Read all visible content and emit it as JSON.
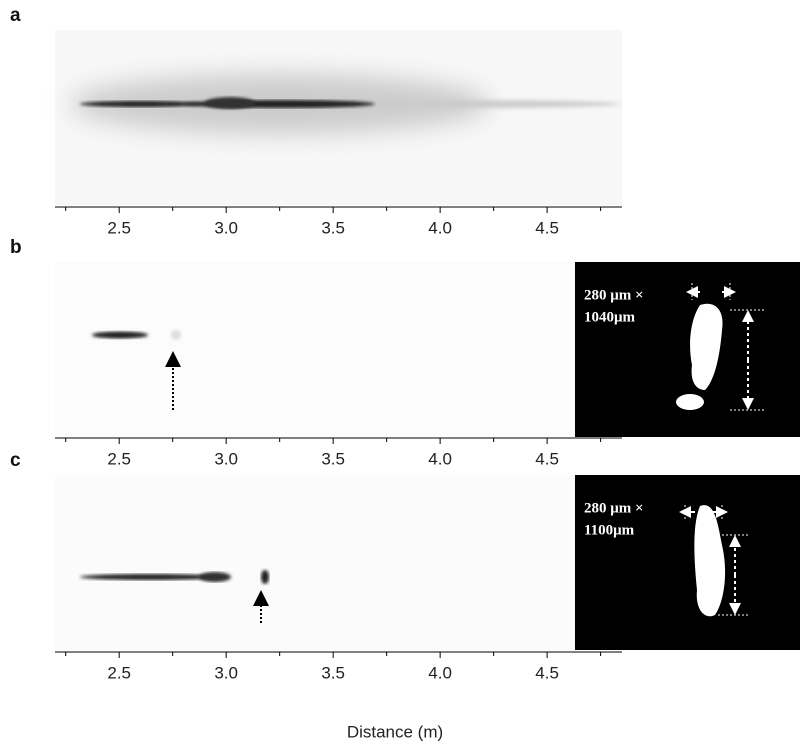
{
  "panels": [
    {
      "label": "a"
    },
    {
      "label": "b",
      "inset_lines": [
        "280 μm ×",
        "1040μm"
      ]
    },
    {
      "label": "c",
      "inset_lines": [
        "280 μm ×",
        "1100μm"
      ]
    }
  ],
  "x_axis": {
    "label": "Distance (m)",
    "xlim": [
      2.2,
      4.85
    ],
    "xticks": [
      2.5,
      {
        "value": 3,
        "label": "3.0"
      },
      3.5,
      {
        "value": 4,
        "label": "4.0"
      },
      4.5
    ],
    "minor_xticks": [
      2.25,
      2.75,
      3.25,
      3.75,
      4.25,
      4.75
    ]
  }
}
